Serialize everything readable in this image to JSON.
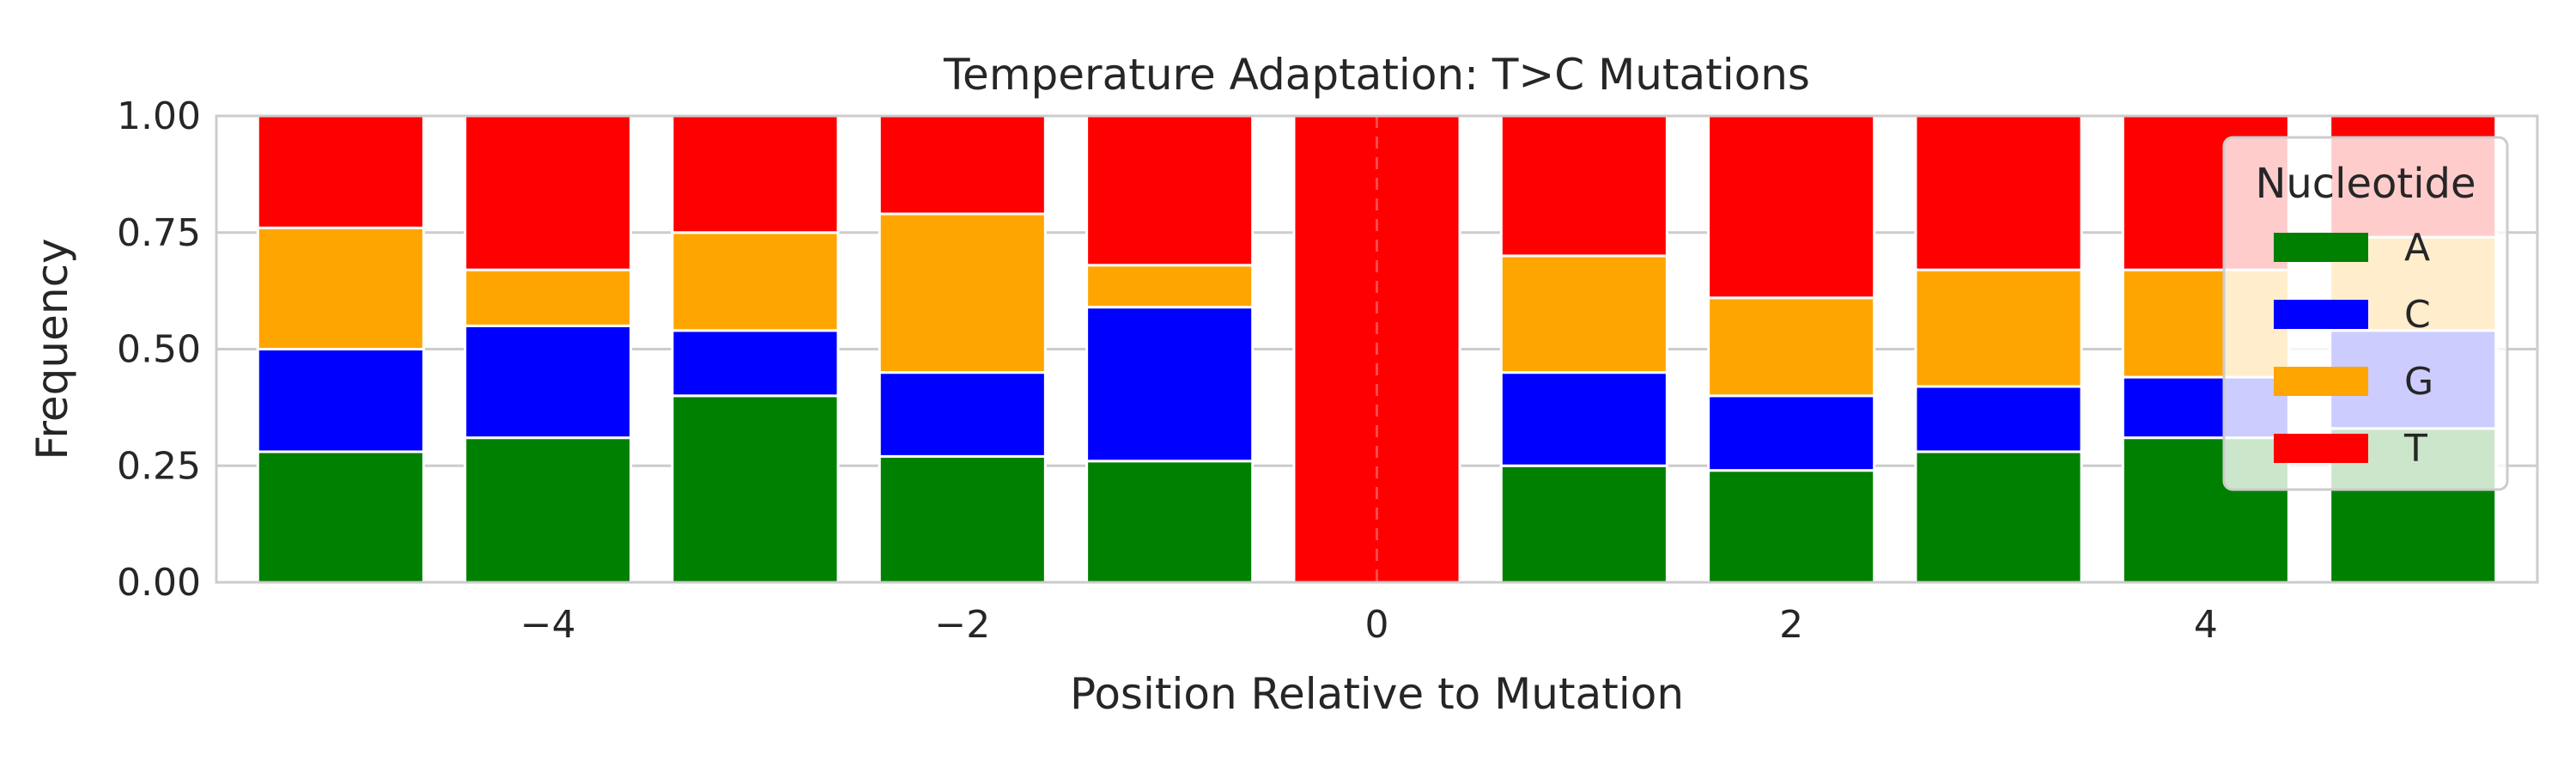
{
  "chart_data": {
    "type": "bar",
    "stacked": true,
    "title": "Temperature Adaptation: T>C Mutations",
    "xlabel": "Position Relative to Mutation",
    "ylabel": "Frequency",
    "x": [
      -5,
      -4,
      -3,
      -2,
      -1,
      0,
      1,
      2,
      3,
      4,
      5
    ],
    "xlim": [
      -5.6,
      5.6
    ],
    "ylim": [
      0,
      1
    ],
    "xticks": [
      -4,
      -2,
      0,
      2,
      4
    ],
    "xtick_labels": [
      "−4",
      "−2",
      "0",
      "2",
      "4"
    ],
    "yticks": [
      0,
      0.25,
      0.5,
      0.75,
      1
    ],
    "ytick_labels": [
      "0.00",
      "0.25",
      "0.50",
      "0.75",
      "1.00"
    ],
    "grid": true,
    "reference_line": {
      "x": 0,
      "style": "dashed"
    },
    "legend": {
      "title": "Nucleotide",
      "placement": "top-right"
    },
    "series": [
      {
        "name": "A",
        "color": "#008000",
        "values": [
          0.28,
          0.31,
          0.4,
          0.27,
          0.26,
          0.0,
          0.25,
          0.24,
          0.28,
          0.31,
          0.33
        ]
      },
      {
        "name": "C",
        "color": "#0000ff",
        "values": [
          0.22,
          0.24,
          0.14,
          0.18,
          0.33,
          0.0,
          0.2,
          0.16,
          0.14,
          0.13,
          0.21
        ]
      },
      {
        "name": "G",
        "color": "#ffa500",
        "values": [
          0.26,
          0.12,
          0.21,
          0.34,
          0.09,
          0.0,
          0.25,
          0.21,
          0.25,
          0.23,
          0.2
        ]
      },
      {
        "name": "T",
        "color": "#ff0000",
        "values": [
          0.24,
          0.33,
          0.25,
          0.21,
          0.32,
          1.0,
          0.3,
          0.39,
          0.33,
          0.33,
          0.26
        ]
      }
    ]
  }
}
